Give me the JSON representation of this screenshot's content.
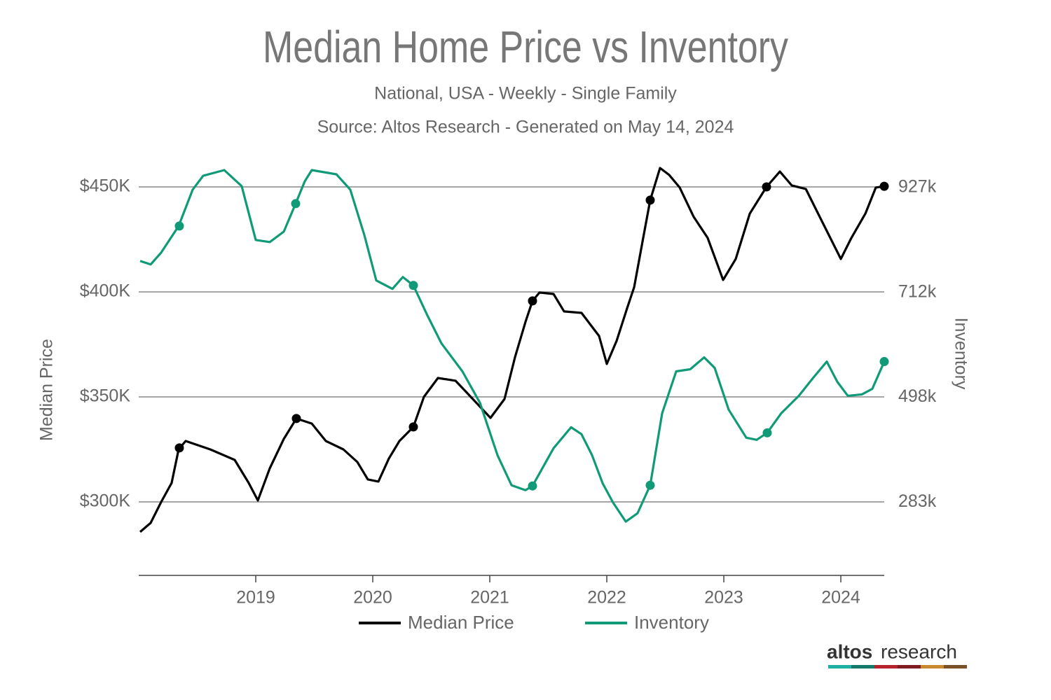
{
  "chart_data": {
    "type": "line",
    "title": "Median Home Price vs Inventory",
    "subtitle": "National, USA - Weekly - Single Family",
    "source": "Source: Altos Research - Generated on May 14, 2024",
    "ylabel": "Median Price",
    "y2label": "Inventory",
    "xlim": [
      2018.0,
      2024.371
    ],
    "xticks": [
      2019,
      2020,
      2021,
      2022,
      2023,
      2024
    ],
    "ylim": [
      265,
      462
    ],
    "yticks": [
      {
        "value": 300,
        "label": "$300K"
      },
      {
        "value": 350,
        "label": "$350K"
      },
      {
        "value": 400,
        "label": "$400K"
      },
      {
        "value": 450,
        "label": "$450K"
      }
    ],
    "y2lim": [
      132.7,
      980
    ],
    "y2ticks": [
      {
        "value": 283,
        "label": "283k"
      },
      {
        "value": 498,
        "label": "498k"
      },
      {
        "value": 712,
        "label": "712k"
      },
      {
        "value": 927,
        "label": "927k"
      }
    ],
    "grid": true,
    "series": [
      {
        "name": "Median Price",
        "color": "#000000",
        "x": [
          2018.012,
          2018.102,
          2018.192,
          2018.281,
          2018.341,
          2018.401,
          2018.611,
          2018.82,
          2018.94,
          2019.018,
          2019.12,
          2019.24,
          2019.347,
          2019.479,
          2019.599,
          2019.749,
          2019.868,
          2019.958,
          2020.048,
          2020.138,
          2020.228,
          2020.347,
          2020.437,
          2020.557,
          2020.707,
          2020.826,
          2021.006,
          2021.126,
          2021.216,
          2021.305,
          2021.365,
          2021.425,
          2021.545,
          2021.635,
          2021.784,
          2021.934,
          2022.0,
          2022.084,
          2022.174,
          2022.234,
          2022.311,
          2022.371,
          2022.455,
          2022.533,
          2022.623,
          2022.743,
          2022.862,
          2022.994,
          2023.102,
          2023.222,
          2023.365,
          2023.479,
          2023.581,
          2023.701,
          2023.82,
          2024.0,
          2024.09,
          2024.21,
          2024.299,
          2024.371
        ],
        "values": [
          285.7,
          290,
          300,
          309,
          325,
          329,
          325,
          320,
          309,
          300.7,
          316,
          330,
          339.7,
          337.3,
          329,
          325,
          319,
          310.7,
          309.7,
          320.7,
          329,
          335.7,
          350,
          359,
          357.7,
          350.7,
          340,
          349,
          369,
          385.7,
          395.7,
          399.7,
          399,
          390.7,
          390,
          379,
          365.7,
          376.7,
          392.3,
          402.3,
          425.7,
          443.7,
          459,
          455.7,
          449.7,
          435.7,
          425.7,
          405.7,
          415.7,
          437.3,
          450,
          457.3,
          450.7,
          449,
          435.7,
          415.7,
          425.7,
          437.3,
          449.7,
          450.3
        ],
        "markers": {
          "x": [
            2018.347,
            2019.347,
            2020.347,
            2021.365,
            2022.371,
            2023.365,
            2024.371
          ],
          "values": [
            325.7,
            339.7,
            335.7,
            395.7,
            443.7,
            450,
            450.3
          ]
        }
      },
      {
        "name": "Inventory",
        "color": "#109a77",
        "axis": "y2",
        "x": [
          2018.012,
          2018.102,
          2018.192,
          2018.341,
          2018.461,
          2018.551,
          2018.731,
          2018.88,
          2019.0,
          2019.12,
          2019.24,
          2019.341,
          2019.419,
          2019.479,
          2019.689,
          2019.808,
          2019.928,
          2020.03,
          2020.168,
          2020.257,
          2020.347,
          2020.467,
          2020.587,
          2020.766,
          2020.916,
          2021.066,
          2021.186,
          2021.305,
          2021.365,
          2021.545,
          2021.695,
          2021.784,
          2021.874,
          2021.964,
          2022.054,
          2022.162,
          2022.263,
          2022.371,
          2022.473,
          2022.593,
          2022.713,
          2022.832,
          2022.922,
          2023.042,
          2023.192,
          2023.281,
          2023.371,
          2023.491,
          2023.641,
          2023.76,
          2023.88,
          2023.97,
          2024.06,
          2024.18,
          2024.269,
          2024.371
        ],
        "values": [
          776.7,
          769.6,
          793.9,
          848.3,
          922.7,
          951.3,
          962.8,
          929.9,
          819.7,
          815.4,
          836.8,
          894.1,
          939.9,
          962.8,
          954.2,
          922.7,
          829.7,
          736.7,
          719.5,
          743.8,
          726.6,
          665.1,
          607.9,
          550.6,
          486.2,
          378.9,
          317.3,
          307.3,
          315.9,
          393.2,
          436.1,
          421.8,
          378.9,
          321.6,
          281.6,
          242.9,
          260.1,
          317.3,
          464.8,
          550.6,
          554.9,
          579.2,
          557.7,
          472,
          414.7,
          410.4,
          424.7,
          464.8,
          500.5,
          536.3,
          570.6,
          529.1,
          500.5,
          503.4,
          514.8,
          570.6
        ],
        "markers": {
          "x": [
            2018.347,
            2019.341,
            2020.347,
            2021.365,
            2022.371,
            2023.371,
            2024.371
          ],
          "values": [
            848.3,
            894.1,
            726.6,
            315.9,
            317.3,
            424.7,
            570.6
          ]
        }
      }
    ]
  },
  "logo": {
    "bold": "altos",
    "light": "research"
  }
}
